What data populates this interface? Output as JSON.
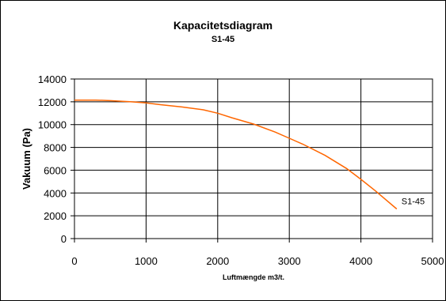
{
  "chart_data": {
    "type": "line",
    "title": "Kapacitetsdiagram",
    "subtitle": "S1-45",
    "xlabel": "Luftmængde m3/t.",
    "ylabel": "Vakuum  (Pa)",
    "xlim": [
      0,
      5000
    ],
    "ylim": [
      0,
      14000
    ],
    "xticks": [
      0,
      1000,
      2000,
      3000,
      4000,
      5000
    ],
    "yticks": [
      0,
      2000,
      4000,
      6000,
      8000,
      10000,
      12000,
      14000
    ],
    "grid": true,
    "legend": "none",
    "series": [
      {
        "name": "S1-45",
        "color": "#FF6600",
        "x": [
          0,
          300,
          500,
          800,
          1000,
          1200,
          1500,
          1800,
          2000,
          2200,
          2500,
          2800,
          3000,
          3200,
          3500,
          3800,
          4000,
          4200,
          4500
        ],
        "y": [
          12150,
          12150,
          12100,
          12000,
          11900,
          11750,
          11550,
          11300,
          11000,
          10600,
          10050,
          9350,
          8800,
          8250,
          7300,
          6150,
          5200,
          4200,
          2600
        ]
      }
    ]
  }
}
